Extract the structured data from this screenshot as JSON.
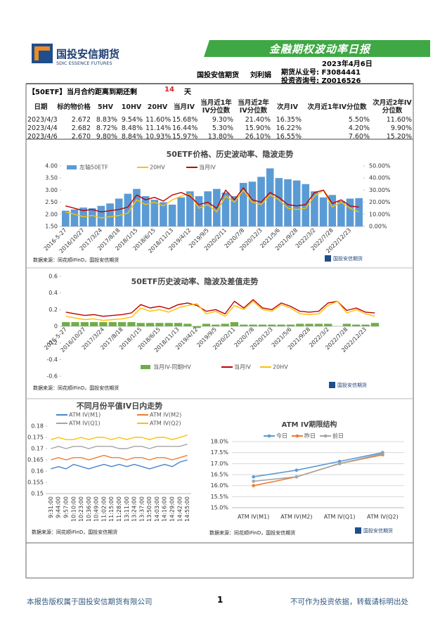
{
  "header": {
    "logo_cn": "国投安信期货",
    "logo_en": "SDIC ESSENCE FUTURES",
    "report_title": "金融期权波动率日报",
    "date": "2023年4月6日",
    "company": "国投安信期货",
    "author": "刘利娟",
    "license1": "期货从业号: F3084441",
    "license2": "投资咨询号: Z0016526"
  },
  "table": {
    "title": "【50ETF】",
    "days_label": "当月合约距离到期还剩",
    "days": 14,
    "days_unit": "天",
    "columns": [
      "日期",
      "标的物价格",
      "5HV",
      "10HV",
      "20HV",
      "当月IV",
      "当月近1年IV分位数",
      "当月近2年IV分位数",
      "次月IV",
      "次月近1年IV分位数",
      "次月近2年IV分位数"
    ],
    "rows": [
      [
        "2023/4/3",
        "2.672",
        "8.83%",
        "9.54%",
        "11.60%",
        "15.68%",
        "9.30%",
        "21.40%",
        "16.35%",
        "5.50%",
        "11.60%"
      ],
      [
        "2023/4/4",
        "2.682",
        "8.72%",
        "8.48%",
        "11.14%",
        "16.44%",
        "5.30%",
        "15.90%",
        "16.22%",
        "4.20%",
        "9.90%"
      ],
      [
        "2023/4/6",
        "2.670",
        "9.80%",
        "8.84%",
        "10.93%",
        "15.97%",
        "13.80%",
        "26.10%",
        "16.55%",
        "7.60%",
        "15.20%"
      ]
    ]
  },
  "chart_data": [
    {
      "type": "combo",
      "title": "50ETF价格、历史波动率、隐波走势",
      "categories": [
        "2016-5-27",
        null,
        "2016/10/27",
        null,
        "2017/3/24",
        null,
        "2017/8/18",
        null,
        "2018/1/15",
        null,
        "2018/6/15",
        null,
        "2018/11/13",
        null,
        "2019/4/12",
        null,
        "2019/9/5",
        null,
        "2020/2/11",
        null,
        "2020/7/8",
        null,
        "2020/12/3",
        null,
        "2021/5/6",
        null,
        "2021/9/28",
        null,
        "2022/3/2",
        null,
        "2022/7/28",
        null,
        "2022/12/23",
        null
      ],
      "series": [
        {
          "name": "左轴50ETF",
          "type": "bar",
          "color": "#5b9bd5",
          "values": [
            2.15,
            2.2,
            2.28,
            2.25,
            2.35,
            2.45,
            2.65,
            2.85,
            3.05,
            2.75,
            2.6,
            2.5,
            2.4,
            2.7,
            2.95,
            2.75,
            2.95,
            3.05,
            2.9,
            2.75,
            3.3,
            3.35,
            3.55,
            3.9,
            3.5,
            3.45,
            3.4,
            3.25,
            2.95,
            2.7,
            2.8,
            2.55,
            2.65,
            2.67
          ]
        },
        {
          "name": "20HV",
          "type": "line",
          "axis": "y2",
          "color": "#ffc000",
          "values": [
            12,
            10,
            8,
            9,
            7,
            8,
            9,
            11,
            22,
            18,
            20,
            17,
            22,
            25,
            27,
            15,
            18,
            12,
            25,
            20,
            30,
            20,
            18,
            26,
            22,
            15,
            14,
            15,
            25,
            30,
            16,
            20,
            15,
            12
          ]
        },
        {
          "name": "当月IV",
          "type": "line",
          "axis": "y2",
          "color": "#c00000",
          "values": [
            17,
            15,
            13,
            14,
            12,
            13,
            14,
            16,
            26,
            22,
            24,
            21,
            26,
            28,
            25,
            18,
            20,
            15,
            30,
            22,
            32,
            22,
            20,
            28,
            24,
            18,
            17,
            18,
            28,
            30,
            19,
            22,
            17,
            16
          ]
        }
      ],
      "ylim": [
        1.5,
        4
      ],
      "yticks": [
        {
          "value": 1.5,
          "label": "1.50"
        },
        {
          "value": 2,
          "label": "2.00"
        },
        {
          "value": 2.5,
          "label": "2.50"
        },
        {
          "value": 3,
          "label": "3.00"
        },
        {
          "value": 3.5,
          "label": "3.50"
        },
        {
          "value": 4,
          "label": "4.00"
        }
      ],
      "y2lim": [
        0,
        50
      ],
      "y2ticks": [
        {
          "value": 0,
          "label": "0.00%"
        },
        {
          "value": 10,
          "label": "10.00%"
        },
        {
          "value": 20,
          "label": "20.00%"
        },
        {
          "value": 30,
          "label": "30.00%"
        },
        {
          "value": 40,
          "label": "40.00%"
        },
        {
          "value": 50,
          "label": "50.00%"
        }
      ],
      "grid": false,
      "legend": "top",
      "source": "数据来源：同花顺iFinD，国投安信期货"
    },
    {
      "type": "combo",
      "title": "50ETF历史波动率、隐波及差值走势",
      "categories": [
        "2016-5-27",
        null,
        "2016/10/27",
        null,
        "2017/3/24",
        null,
        "2017/8/18",
        null,
        "2018/1/15",
        null,
        "2018/6/15",
        null,
        "2018/11/13",
        null,
        "2019/4/12",
        null,
        "2019/9/5",
        null,
        "2020/2/11",
        null,
        "2020/7/8",
        null,
        "2020/12/3",
        null,
        "2021/5/6",
        null,
        "2021/9/28",
        null,
        "2022/3/2",
        null,
        "2022/7/28",
        null,
        "2022/12/23",
        null
      ],
      "series": [
        {
          "name": "当月IV-同期HV",
          "type": "bar",
          "color": "#70ad47",
          "values": [
            0.05,
            0.05,
            0.05,
            0.05,
            0.05,
            0.05,
            0.05,
            0.05,
            0.04,
            0.04,
            0.04,
            0.04,
            0.04,
            0.03,
            -0.02,
            0.03,
            0.02,
            0.03,
            0.05,
            0.02,
            0.02,
            0.02,
            0.02,
            0.02,
            0.02,
            0.03,
            0.03,
            0.03,
            0.03,
            0,
            0.03,
            0.02,
            0.02,
            0.04
          ]
        },
        {
          "name": "当月IV",
          "type": "line",
          "color": "#c00000",
          "values": [
            0.17,
            0.15,
            0.13,
            0.14,
            0.12,
            0.13,
            0.14,
            0.16,
            0.26,
            0.22,
            0.24,
            0.21,
            0.26,
            0.28,
            0.25,
            0.18,
            0.2,
            0.15,
            0.3,
            0.22,
            0.32,
            0.22,
            0.2,
            0.28,
            0.24,
            0.18,
            0.17,
            0.18,
            0.28,
            0.3,
            0.19,
            0.22,
            0.17,
            0.16
          ]
        },
        {
          "name": "20HV",
          "type": "line",
          "color": "#ffc000",
          "values": [
            0.12,
            0.1,
            0.08,
            0.09,
            0.07,
            0.08,
            0.09,
            0.11,
            0.22,
            0.18,
            0.2,
            0.17,
            0.22,
            0.25,
            0.27,
            0.15,
            0.18,
            0.12,
            0.25,
            0.2,
            0.3,
            0.2,
            0.18,
            0.26,
            0.22,
            0.15,
            0.14,
            0.15,
            0.25,
            0.3,
            0.16,
            0.2,
            0.15,
            0.12
          ]
        }
      ],
      "ylim": [
        -0.6,
        0.6
      ],
      "yticks": [
        -0.6,
        -0.4,
        -0.2,
        0,
        0.2,
        0.4,
        0.6
      ],
      "grid": false,
      "legend": "bottom",
      "source": "数据来源：同花顺iFinD，国投安信期货"
    },
    {
      "type": "line",
      "title": "不同月份平值IV日内走势",
      "categories": [
        "9:31:00",
        "9:44:00",
        "9:57:00",
        "10:10:00",
        "10:23:00",
        "10:36:00",
        "10:49:00",
        "11:02:00",
        "11:15:00",
        "11:28:00",
        "13:11:00",
        "13:24:00",
        "13:37:00",
        "13:50:00",
        "14:03:00",
        "14:16:00",
        "14:29:00",
        "14:42:00",
        "14:55:00"
      ],
      "series": [
        {
          "name": "ATM IV(M1)",
          "color": "#4a86c8",
          "values": [
            0.161,
            0.162,
            0.161,
            0.163,
            0.162,
            0.161,
            0.162,
            0.163,
            0.162,
            0.163,
            0.162,
            0.163,
            0.162,
            0.161,
            0.162,
            0.163,
            0.162,
            0.164,
            0.165
          ]
        },
        {
          "name": "ATM IV(M2)",
          "color": "#ed7d31",
          "values": [
            0.165,
            0.166,
            0.165,
            0.166,
            0.166,
            0.165,
            0.166,
            0.167,
            0.166,
            0.166,
            0.165,
            0.166,
            0.166,
            0.165,
            0.166,
            0.166,
            0.165,
            0.166,
            0.167
          ]
        },
        {
          "name": "ATM IV(Q1)",
          "color": "#a5a5a5",
          "values": [
            0.17,
            0.171,
            0.17,
            0.171,
            0.171,
            0.17,
            0.171,
            0.171,
            0.171,
            0.17,
            0.17,
            0.171,
            0.171,
            0.17,
            0.171,
            0.171,
            0.171,
            0.171,
            0.172
          ]
        },
        {
          "name": "ATM IV(Q2)",
          "color": "#ffc000",
          "values": [
            0.174,
            0.175,
            0.174,
            0.174,
            0.175,
            0.174,
            0.175,
            0.175,
            0.174,
            0.175,
            0.174,
            0.175,
            0.175,
            0.174,
            0.175,
            0.175,
            0.174,
            0.175,
            0.176
          ]
        }
      ],
      "ylim": [
        0.15,
        0.18
      ],
      "yticks": [
        0.15,
        0.155,
        0.16,
        0.165,
        0.17,
        0.175,
        0.18
      ],
      "grid": false,
      "legend": "top",
      "source": "数据来源：同花顺iFinD，国投安信期货"
    },
    {
      "type": "line",
      "title": "ATM IV期限结构",
      "categories": [
        "ATM IV(M1)",
        "ATM IV(M2)",
        "ATM IV(Q1)",
        "ATM IV(Q2)"
      ],
      "series": [
        {
          "name": "今日",
          "color": "#5b9bd5",
          "values": [
            16.4,
            16.7,
            17.1,
            17.5
          ]
        },
        {
          "name": "昨日",
          "color": "#ed7d31",
          "values": [
            16.0,
            16.4,
            17.0,
            17.4
          ]
        },
        {
          "name": "前日",
          "color": "#a5a5a5",
          "values": [
            16.2,
            16.4,
            17.0,
            17.45
          ]
        }
      ],
      "ylim": [
        15,
        18
      ],
      "yticks": [
        {
          "value": 15,
          "label": "15.0%"
        },
        {
          "value": 15.5,
          "label": "15.5%"
        },
        {
          "value": 16,
          "label": "16.0%"
        },
        {
          "value": 16.5,
          "label": "16.5%"
        },
        {
          "value": 17,
          "label": "17.0%"
        },
        {
          "value": 17.5,
          "label": "17.5%"
        },
        {
          "value": 18,
          "label": "18.0%"
        }
      ],
      "grid": true,
      "markers": true,
      "legend": "top",
      "source": "数据来源：同花顺iFinD，国投安信期货"
    }
  ],
  "footer": {
    "copyright": "本报告版权属于国投安信期货有限公司",
    "page": 1,
    "disclaimer": "不可作为投资依据，转载请标明出处"
  }
}
